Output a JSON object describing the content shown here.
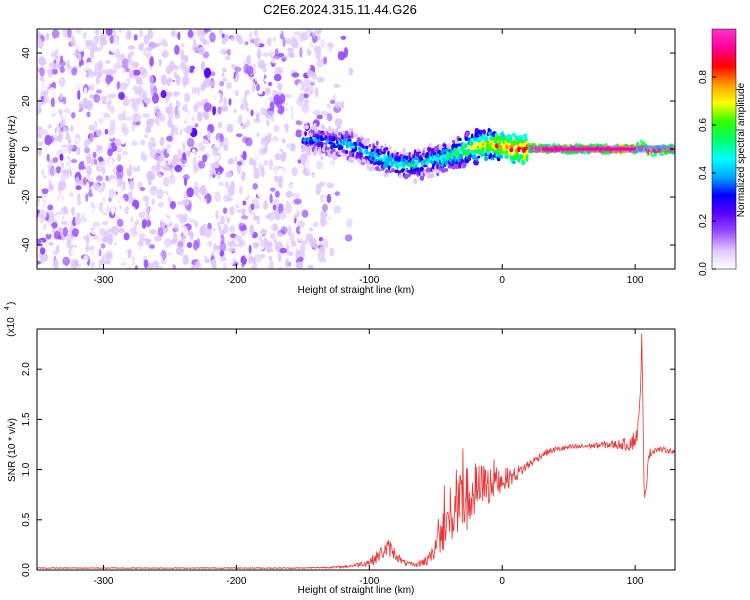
{
  "title": "C2E6.2024.315.11.44.G26",
  "chart_data": [
    {
      "type": "heatmap",
      "xlabel": "Height of straight line (km)",
      "ylabel": "Frequency (Hz)",
      "xlim": [
        -350,
        130
      ],
      "ylim": [
        -50,
        50
      ],
      "xticks": [
        -300,
        -200,
        -100,
        0,
        100
      ],
      "yticks": [
        -40,
        -20,
        0,
        20,
        40
      ],
      "colorbar": {
        "label": "Normalized spectral amplitude",
        "range": [
          0,
          1
        ],
        "ticks": [
          "0.0",
          "0.2",
          "0.4",
          "0.6",
          "0.8"
        ],
        "colors": [
          "#ffffff",
          "#e0c8ff",
          "#9a4dff",
          "#5a00ff",
          "#0000ff",
          "#00aaff",
          "#00ffff",
          "#00ff66",
          "#33ff00",
          "#ffff00",
          "#ff9900",
          "#ff0000",
          "#ff0099",
          "#ff33cc"
        ]
      },
      "track": {
        "x": [
          -150,
          -140,
          -130,
          -120,
          -110,
          -100,
          -90,
          -80,
          -70,
          -60,
          -50,
          -40,
          -30,
          -20,
          -10,
          0,
          10,
          20,
          30,
          40,
          60,
          80,
          100,
          105,
          110,
          130
        ],
        "y": [
          4,
          4,
          3,
          2,
          1,
          -2,
          -4,
          -6,
          -7,
          -6,
          -4,
          -3,
          -1,
          1,
          2,
          1,
          0,
          0.5,
          0,
          0,
          0,
          0,
          0,
          2,
          -1,
          0
        ],
        "amplitude": [
          0.35,
          0.4,
          0.4,
          0.45,
          0.45,
          0.45,
          0.5,
          0.5,
          0.5,
          0.45,
          0.5,
          0.55,
          0.6,
          0.7,
          0.75,
          0.8,
          0.85,
          0.9,
          0.95,
          0.95,
          0.95,
          0.95,
          0.95,
          0.8,
          0.9,
          0.9
        ]
      },
      "noise_region": {
        "x_range": [
          -350,
          -115
        ],
        "amplitude_range": [
          0.02,
          0.22
        ]
      }
    },
    {
      "type": "line",
      "xlabel": "Height of straight line (km)",
      "ylabel": "SNR (10 * v/v)",
      "yscale_label": "(x10",
      "yscale_exp": "4",
      "xlim": [
        -350,
        130
      ],
      "ylim": [
        0,
        2.4
      ],
      "xticks": [
        -300,
        -200,
        -100,
        0,
        100
      ],
      "yticks": [
        "0.0",
        "0.5",
        "1.0",
        "1.5",
        "2.0"
      ],
      "color": "#ee3333",
      "x": [
        -350,
        -300,
        -250,
        -200,
        -150,
        -120,
        -110,
        -100,
        -95,
        -90,
        -85,
        -80,
        -75,
        -70,
        -65,
        -60,
        -55,
        -50,
        -45,
        -40,
        -35,
        -30,
        -25,
        -20,
        -15,
        -10,
        -5,
        0,
        5,
        10,
        15,
        20,
        25,
        30,
        35,
        40,
        50,
        60,
        70,
        80,
        90,
        95,
        100,
        103,
        105,
        107,
        110,
        115,
        120,
        130
      ],
      "y": [
        0.02,
        0.02,
        0.02,
        0.02,
        0.02,
        0.03,
        0.05,
        0.08,
        0.12,
        0.18,
        0.22,
        0.15,
        0.08,
        0.06,
        0.05,
        0.08,
        0.1,
        0.25,
        0.38,
        0.48,
        0.55,
        0.65,
        0.72,
        0.78,
        0.82,
        0.85,
        0.88,
        0.9,
        0.92,
        0.95,
        1.0,
        1.05,
        1.1,
        1.15,
        1.18,
        1.2,
        1.22,
        1.23,
        1.24,
        1.25,
        1.25,
        1.26,
        1.3,
        1.45,
        2.3,
        0.6,
        1.15,
        1.2,
        1.2,
        1.18
      ],
      "noise_amplitude": [
        0.005,
        0.005,
        0.005,
        0.005,
        0.005,
        0.01,
        0.02,
        0.04,
        0.06,
        0.08,
        0.09,
        0.06,
        0.03,
        0.02,
        0.02,
        0.04,
        0.06,
        0.12,
        0.2,
        0.28,
        0.32,
        0.35,
        0.33,
        0.3,
        0.25,
        0.2,
        0.15,
        0.12,
        0.1,
        0.08,
        0.06,
        0.05,
        0.04,
        0.035,
        0.03,
        0.03,
        0.03,
        0.03,
        0.03,
        0.04,
        0.05,
        0.08,
        0.1,
        0.12,
        0.1,
        0.1,
        0.06,
        0.03,
        0.025,
        0.025
      ]
    }
  ]
}
